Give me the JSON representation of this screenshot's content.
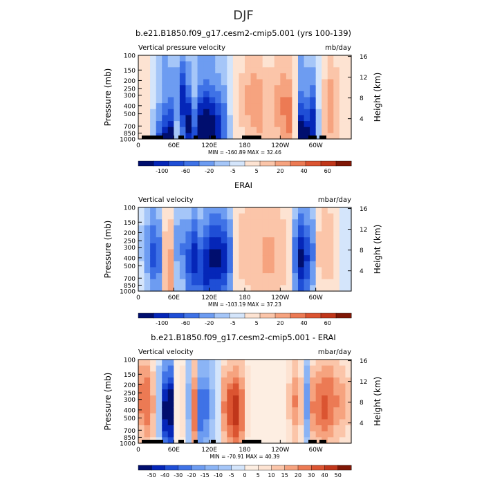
{
  "figure": {
    "title": "DJF"
  },
  "chart_data": [
    {
      "type": "heatmap",
      "title": "b.e21.B1850.f09_g17.cesm2-cmip5.001 (yrs 100-139)",
      "variable": "Vertical pressure velocity",
      "units": "mb/day",
      "ylabel": "Pressure (mb)",
      "ylabel_right": "Height (km)",
      "xticks": [
        "0",
        "60E",
        "120E",
        "180",
        "120W",
        "60W"
      ],
      "yticks": [
        "100",
        "150",
        "200",
        "250",
        "300",
        "400",
        "500",
        "700",
        "850",
        "1000"
      ],
      "yticks_right": [
        "4",
        "8",
        "12",
        "16"
      ],
      "stats": "MIN = -160.89   MAX =  32.46",
      "min": -160.89,
      "max": 32.46,
      "colorbar_labels": [
        "-100",
        "-60",
        "-20",
        "-5",
        "5",
        "20",
        "40",
        "60"
      ],
      "colorbar_colors": [
        "#000e6e",
        "#0526b8",
        "#1f4ed6",
        "#3f72e6",
        "#6d9cf1",
        "#a5c6f8",
        "#d4e5fb",
        "#fde3d2",
        "#fbc5a9",
        "#f6a37f",
        "#ec7a54",
        "#db5431",
        "#c0361a",
        "#7f1706"
      ],
      "sections": [
        {
          "d": 0.45,
          "a": 0.1
        },
        {
          "d": 0.55,
          "a": 0.08
        },
        {
          "d": 0.85,
          "a": -0.15
        },
        {
          "d": 1.1,
          "a": -0.55
        },
        {
          "d": 1.2,
          "a": -0.95
        },
        {
          "d": 1.05,
          "a": -0.85
        },
        {
          "d": 0.45,
          "a": -0.35
        },
        {
          "d": 0.55,
          "a": -0.7
        },
        {
          "d": 0.85,
          "a": -0.8
        },
        {
          "d": 1.05,
          "a": -0.6
        },
        {
          "d": 0.9,
          "a": -0.85
        },
        {
          "d": 0.85,
          "a": -0.9
        },
        {
          "d": 0.9,
          "a": -0.9
        },
        {
          "d": 0.9,
          "a": -0.7
        },
        {
          "d": 0.85,
          "a": -0.5
        },
        {
          "d": 0.9,
          "a": -0.15
        },
        {
          "d": 0.75,
          "a": 0.0
        },
        {
          "d": 0.55,
          "a": 0.18
        },
        {
          "d": 0.55,
          "a": 0.28
        },
        {
          "d": 0.55,
          "a": 0.35
        },
        {
          "d": 0.6,
          "a": 0.35
        },
        {
          "d": 0.6,
          "a": 0.22
        },
        {
          "d": 0.55,
          "a": 0.22
        },
        {
          "d": 0.6,
          "a": 0.32
        },
        {
          "d": 0.6,
          "a": 0.4
        },
        {
          "d": 0.7,
          "a": 0.45
        },
        {
          "d": 0.9,
          "a": 0.0
        },
        {
          "d": 1.05,
          "a": -0.95
        },
        {
          "d": 1.05,
          "a": -0.85
        },
        {
          "d": 0.85,
          "a": -0.75
        },
        {
          "d": 0.85,
          "a": -0.15
        },
        {
          "d": 0.7,
          "a": 0.22
        },
        {
          "d": 0.6,
          "a": 0.35
        },
        {
          "d": 0.6,
          "a": 0.22
        },
        {
          "d": 0.45,
          "a": 0.1
        },
        {
          "d": 0.45,
          "a": 0.1
        }
      ]
    },
    {
      "type": "heatmap",
      "title": "ERAI",
      "variable": "Vertical velocity",
      "units": "mbar/day",
      "ylabel": "Pressure (mb)",
      "ylabel_right": "Height (km)",
      "xticks": [
        "0",
        "60E",
        "120E",
        "180",
        "120W",
        "60W"
      ],
      "yticks": [
        "100",
        "150",
        "200",
        "250",
        "300",
        "400",
        "500",
        "700",
        "850",
        "1000"
      ],
      "yticks_right": [
        "4",
        "8",
        "12",
        "16"
      ],
      "stats": "MIN = -103.19   MAX =  37.23",
      "min": -103.19,
      "max": 37.23,
      "colorbar_labels": [
        "-100",
        "-60",
        "-20",
        "-5",
        "5",
        "20",
        "40",
        "60"
      ],
      "colorbar_colors": [
        "#000e6e",
        "#0526b8",
        "#1f4ed6",
        "#3f72e6",
        "#6d9cf1",
        "#a5c6f8",
        "#d4e5fb",
        "#fde3d2",
        "#fbc5a9",
        "#f6a37f",
        "#ec7a54",
        "#db5431",
        "#c0361a",
        "#7f1706"
      ],
      "sections": [
        {
          "d": 0.45,
          "a": -0.15
        },
        {
          "d": 0.5,
          "a": -0.35
        },
        {
          "d": 0.55,
          "a": -0.55
        },
        {
          "d": 0.55,
          "a": -0.45
        },
        {
          "d": 0.75,
          "a": 0.25
        },
        {
          "d": 0.8,
          "a": 0.35
        },
        {
          "d": 0.4,
          "a": -0.3
        },
        {
          "d": 0.5,
          "a": -0.4
        },
        {
          "d": 0.65,
          "a": -0.55
        },
        {
          "d": 0.6,
          "a": -0.7
        },
        {
          "d": 0.7,
          "a": -0.6
        },
        {
          "d": 0.7,
          "a": -0.75
        },
        {
          "d": 0.6,
          "a": -0.8
        },
        {
          "d": 0.6,
          "a": -0.8
        },
        {
          "d": 0.6,
          "a": -0.7
        },
        {
          "d": 0.55,
          "a": -0.45
        },
        {
          "d": 0.5,
          "a": 0.05
        },
        {
          "d": 0.45,
          "a": 0.2
        },
        {
          "d": 0.45,
          "a": 0.25
        },
        {
          "d": 0.5,
          "a": 0.25
        },
        {
          "d": 0.5,
          "a": 0.25
        },
        {
          "d": 0.55,
          "a": 0.3
        },
        {
          "d": 0.55,
          "a": 0.3
        },
        {
          "d": 0.5,
          "a": 0.25
        },
        {
          "d": 0.55,
          "a": 0.2
        },
        {
          "d": 0.55,
          "a": 0.05
        },
        {
          "d": 0.6,
          "a": -0.45
        },
        {
          "d": 0.6,
          "a": -0.8
        },
        {
          "d": 0.6,
          "a": -0.65
        },
        {
          "d": 0.55,
          "a": -0.4
        },
        {
          "d": 0.5,
          "a": 0.15
        },
        {
          "d": 0.45,
          "a": 0.22
        },
        {
          "d": 0.45,
          "a": 0.2
        },
        {
          "d": 0.4,
          "a": 0.12
        },
        {
          "d": 0.4,
          "a": -0.05
        },
        {
          "d": 0.45,
          "a": -0.1
        }
      ]
    },
    {
      "type": "heatmap",
      "title": "b.e21.B1850.f09_g17.cesm2-cmip5.001 - ERAI",
      "variable": "Vertical velocity",
      "units": "mbar/day",
      "ylabel": "Pressure (mb)",
      "ylabel_right": "Height (km)",
      "xticks": [
        "0",
        "60E",
        "120E",
        "180",
        "120W",
        "60W"
      ],
      "yticks": [
        "100",
        "150",
        "200",
        "250",
        "300",
        "400",
        "500",
        "700",
        "850",
        "1000"
      ],
      "yticks_right": [
        "4",
        "8",
        "12",
        "16"
      ],
      "stats": "MIN = -70.91   MAX =  40.39",
      "min": -70.91,
      "max": 40.39,
      "colorbar_labels": [
        "-50",
        "-40",
        "-30",
        "-20",
        "-15",
        "-10",
        "-5",
        "0",
        "5",
        "10",
        "15",
        "20",
        "30",
        "40",
        "50"
      ],
      "colorbar_colors": [
        "#000e6e",
        "#0526b8",
        "#1f4ed6",
        "#3f72e6",
        "#6d9cf1",
        "#8bb4f5",
        "#a5c6f8",
        "#d4e5fb",
        "#fdeee2",
        "#fde3d2",
        "#fbc5a9",
        "#f6a37f",
        "#ec7a54",
        "#db5431",
        "#c0361a",
        "#7f1706"
      ],
      "sections": [
        {
          "d": 0.45,
          "a": 0.5
        },
        {
          "d": 0.5,
          "a": 0.55
        },
        {
          "d": 0.55,
          "a": 0.35
        },
        {
          "d": 0.5,
          "a": -0.2
        },
        {
          "d": 0.6,
          "a": -0.8
        },
        {
          "d": 0.6,
          "a": -0.9
        },
        {
          "d": 0.5,
          "a": 0.0
        },
        {
          "d": 0.5,
          "a": 0.2
        },
        {
          "d": 0.5,
          "a": -0.25
        },
        {
          "d": 0.6,
          "a": 0.55
        },
        {
          "d": 0.6,
          "a": -0.55
        },
        {
          "d": 0.55,
          "a": -0.5
        },
        {
          "d": 0.55,
          "a": -0.25
        },
        {
          "d": 0.55,
          "a": -0.1
        },
        {
          "d": 0.55,
          "a": 0.45
        },
        {
          "d": 0.6,
          "a": 0.65
        },
        {
          "d": 0.6,
          "a": 0.75
        },
        {
          "d": 0.6,
          "a": 0.55
        },
        {
          "d": 0.5,
          "a": 0.2
        },
        {
          "d": 0.5,
          "a": 0.1
        },
        {
          "d": 0.45,
          "a": 0.05
        },
        {
          "d": 0.45,
          "a": 0.0
        },
        {
          "d": 0.45,
          "a": 0.05
        },
        {
          "d": 0.45,
          "a": 0.05
        },
        {
          "d": 0.45,
          "a": 0.1
        },
        {
          "d": 0.5,
          "a": 0.25
        },
        {
          "d": 0.5,
          "a": 0.45
        },
        {
          "d": 0.5,
          "a": 0.3
        },
        {
          "d": 0.5,
          "a": -0.4
        },
        {
          "d": 0.55,
          "a": 0.45
        },
        {
          "d": 0.55,
          "a": 0.55
        },
        {
          "d": 0.55,
          "a": 0.6
        },
        {
          "d": 0.5,
          "a": 0.55
        },
        {
          "d": 0.5,
          "a": 0.45
        },
        {
          "d": 0.5,
          "a": 0.4
        },
        {
          "d": 0.5,
          "a": 0.3
        }
      ]
    }
  ]
}
